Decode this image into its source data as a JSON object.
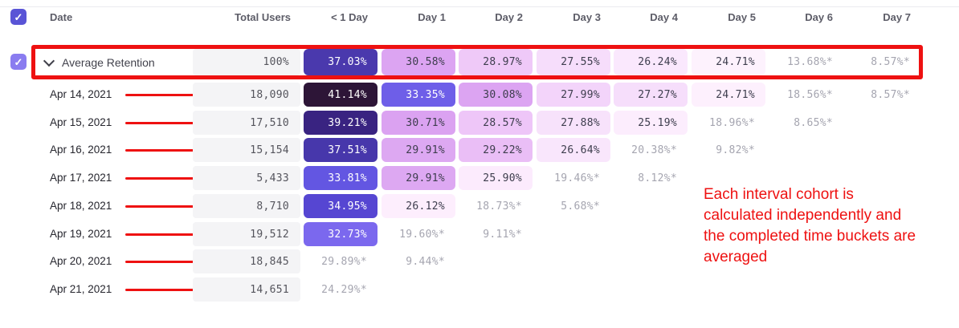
{
  "header": {
    "select_all_checked": true,
    "columns": [
      "Date",
      "Total Users",
      "< 1 Day",
      "Day 1",
      "Day 2",
      "Day 3",
      "Day 4",
      "Day 5",
      "Day 6",
      "Day 7"
    ]
  },
  "average_row": {
    "checked": true,
    "label": "Average Retention",
    "total": "100%",
    "cells": [
      {
        "text": "37.03%",
        "bg": "#4a39ad",
        "fg": "#ffffff"
      },
      {
        "text": "30.58%",
        "bg": "#dca4f2",
        "fg": "#3d3d4d"
      },
      {
        "text": "28.97%",
        "bg": "#efc9f8",
        "fg": "#3d3d4d"
      },
      {
        "text": "27.55%",
        "bg": "#f6ddfb",
        "fg": "#3d3d4d"
      },
      {
        "text": "26.24%",
        "bg": "#fae8fd",
        "fg": "#3d3d4d"
      },
      {
        "text": "24.71%",
        "bg": "#fdf2fd",
        "fg": "#3d3d4d"
      },
      {
        "text": "13.68%*",
        "bg": "",
        "fg": "#a5a5b0"
      },
      {
        "text": "8.57%*",
        "bg": "",
        "fg": "#a5a5b0"
      }
    ]
  },
  "cohort_rows": [
    {
      "date": "Apr 14, 2021",
      "total": "18,090",
      "cells": [
        {
          "text": "41.14%",
          "bg": "#2d1537",
          "fg": "#ffffff"
        },
        {
          "text": "33.35%",
          "bg": "#6e5ee8",
          "fg": "#ffffff"
        },
        {
          "text": "30.08%",
          "bg": "#dca4f2",
          "fg": "#3d3d4d"
        },
        {
          "text": "27.99%",
          "bg": "#f3d4fa",
          "fg": "#3d3d4d"
        },
        {
          "text": "27.27%",
          "bg": "#f6defb",
          "fg": "#3d3d4d"
        },
        {
          "text": "24.71%",
          "bg": "#fdf0fd",
          "fg": "#3d3d4d"
        },
        {
          "text": "18.56%*",
          "bg": "",
          "fg": "#a5a5b0"
        },
        {
          "text": "8.57%*",
          "bg": "",
          "fg": "#a5a5b0"
        }
      ]
    },
    {
      "date": "Apr 15, 2021",
      "total": "17,510",
      "cells": [
        {
          "text": "39.21%",
          "bg": "#392381",
          "fg": "#ffffff"
        },
        {
          "text": "30.71%",
          "bg": "#dba2f1",
          "fg": "#3d3d4d"
        },
        {
          "text": "28.57%",
          "bg": "#eec6f8",
          "fg": "#3d3d4d"
        },
        {
          "text": "27.88%",
          "bg": "#f7e2fb",
          "fg": "#3d3d4d"
        },
        {
          "text": "25.19%",
          "bg": "#fcedfd",
          "fg": "#3d3d4d"
        },
        {
          "text": "18.96%*",
          "bg": "",
          "fg": "#a5a5b0"
        },
        {
          "text": "8.65%*",
          "bg": "",
          "fg": "#a5a5b0"
        }
      ]
    },
    {
      "date": "Apr 16, 2021",
      "total": "15,154",
      "cells": [
        {
          "text": "37.51%",
          "bg": "#4737ab",
          "fg": "#ffffff"
        },
        {
          "text": "29.91%",
          "bg": "#dda8f2",
          "fg": "#3d3d4d"
        },
        {
          "text": "29.22%",
          "bg": "#eabef6",
          "fg": "#3d3d4d"
        },
        {
          "text": "26.64%",
          "bg": "#f9e6fc",
          "fg": "#3d3d4d"
        },
        {
          "text": "20.38%*",
          "bg": "",
          "fg": "#a5a5b0"
        },
        {
          "text": "9.82%*",
          "bg": "",
          "fg": "#a5a5b0"
        }
      ]
    },
    {
      "date": "Apr 17, 2021",
      "total": "5,433",
      "cells": [
        {
          "text": "33.81%",
          "bg": "#6356e2",
          "fg": "#ffffff"
        },
        {
          "text": "29.91%",
          "bg": "#dda8f2",
          "fg": "#3d3d4d"
        },
        {
          "text": "25.90%",
          "bg": "#fcebfd",
          "fg": "#3d3d4d"
        },
        {
          "text": "19.46%*",
          "bg": "",
          "fg": "#a5a5b0"
        },
        {
          "text": "8.12%*",
          "bg": "",
          "fg": "#a5a5b0"
        }
      ]
    },
    {
      "date": "Apr 18, 2021",
      "total": "8,710",
      "cells": [
        {
          "text": "34.95%",
          "bg": "#5646d2",
          "fg": "#ffffff"
        },
        {
          "text": "26.12%",
          "bg": "#fdeefd",
          "fg": "#3d3d4d"
        },
        {
          "text": "18.73%*",
          "bg": "",
          "fg": "#a5a5b0"
        },
        {
          "text": "5.68%*",
          "bg": "",
          "fg": "#a5a5b0"
        }
      ]
    },
    {
      "date": "Apr 19, 2021",
      "total": "19,512",
      "cells": [
        {
          "text": "32.73%",
          "bg": "#7b68ee",
          "fg": "#ffffff"
        },
        {
          "text": "19.60%*",
          "bg": "",
          "fg": "#a5a5b0"
        },
        {
          "text": "9.11%*",
          "bg": "",
          "fg": "#a5a5b0"
        }
      ]
    },
    {
      "date": "Apr 20, 2021",
      "total": "18,845",
      "cells": [
        {
          "text": "29.89%*",
          "bg": "",
          "fg": "#a5a5b0"
        },
        {
          "text": "9.44%*",
          "bg": "",
          "fg": "#a5a5b0"
        }
      ]
    },
    {
      "date": "Apr 21, 2021",
      "total": "14,651",
      "cells": [
        {
          "text": "24.29%*",
          "bg": "",
          "fg": "#a5a5b0"
        }
      ]
    }
  ],
  "annotations": {
    "color": "#ee1111",
    "lines": [
      "Each interval cohort is",
      "calculated independently and",
      "the completed time buckets are",
      "averaged"
    ]
  },
  "colors": {
    "header_checkbox": "#5954d6",
    "average_checkbox": "#8a7cf0",
    "cell_default_bg": "#f4f4f6"
  }
}
